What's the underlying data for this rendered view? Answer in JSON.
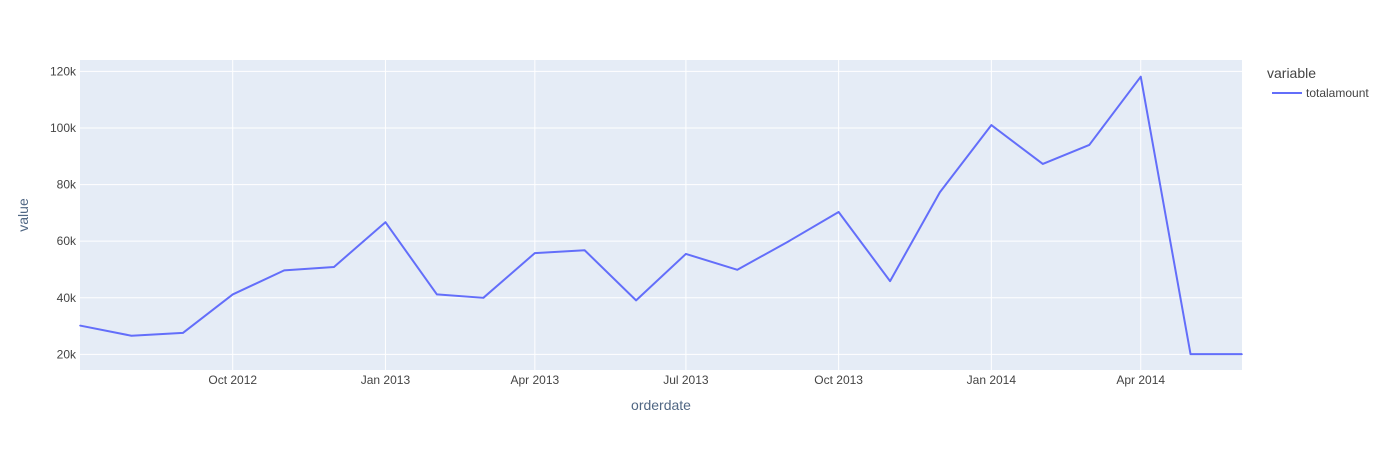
{
  "chart_data": {
    "type": "line",
    "xlabel": "orderdate",
    "ylabel": "value",
    "x_ticks": [
      "Oct 2012",
      "Jan 2013",
      "Apr 2013",
      "Jul 2013",
      "Oct 2013",
      "Jan 2014",
      "Apr 2014"
    ],
    "y_ticks": [
      "20k",
      "40k",
      "60k",
      "80k",
      "100k",
      "120k"
    ],
    "ylim": [
      14500,
      124000
    ],
    "xlim": [
      "2012-07-01",
      "2014-06-01"
    ],
    "grid": true,
    "legend": {
      "title": "variable",
      "placement": "top-right"
    },
    "colors": {
      "plot_background": "#E5ECF6",
      "grid": "#ffffff",
      "series": "#636EFA"
    },
    "series": [
      {
        "name": "totalamount",
        "x": [
          "2012-07-01",
          "2012-08-01",
          "2012-09-01",
          "2012-10-01",
          "2012-11-01",
          "2012-12-01",
          "2013-01-01",
          "2013-02-01",
          "2013-03-01",
          "2013-04-01",
          "2013-05-01",
          "2013-06-01",
          "2013-07-01",
          "2013-08-01",
          "2013-09-01",
          "2013-10-01",
          "2013-11-01",
          "2013-12-01",
          "2014-01-01",
          "2014-02-01",
          "2014-03-01",
          "2014-04-01",
          "2014-05-01",
          "2014-06-01"
        ],
        "y": [
          30200,
          26600,
          27600,
          41200,
          49700,
          50900,
          66700,
          41200,
          40000,
          55800,
          56800,
          39100,
          55500,
          49900,
          60000,
          70300,
          45900,
          77300,
          101000,
          87300,
          94000,
          118100,
          20100,
          20100
        ]
      }
    ]
  }
}
